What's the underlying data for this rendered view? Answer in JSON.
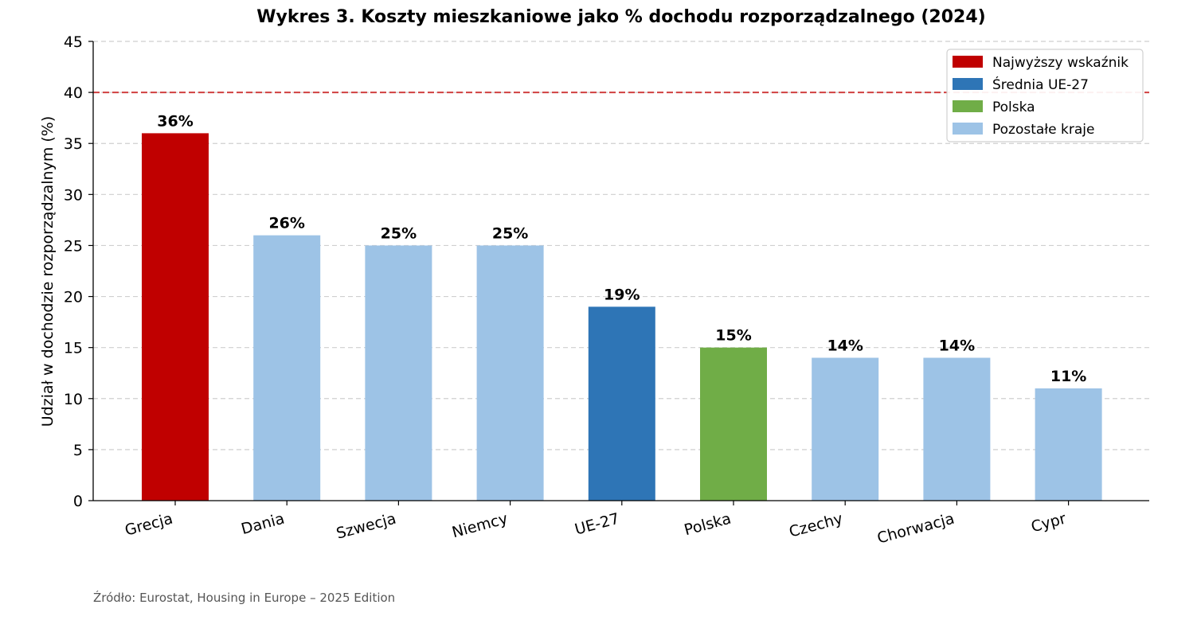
{
  "chart_data": {
    "type": "bar",
    "title": "Wykres 3. Koszty mieszkaniowe jako % dochodu rozporządzalnego (2024)",
    "xlabel": "",
    "ylabel": "Udział w dochodzie rozporządzalnym (%)",
    "ylim": [
      0,
      45
    ],
    "yticks": [
      0,
      5,
      10,
      15,
      20,
      25,
      30,
      35,
      40,
      45
    ],
    "grid": "horizontal dashed",
    "categories": [
      "Grecja",
      "Dania",
      "Szwecja",
      "Niemcy",
      "UE-27",
      "Polska",
      "Czechy",
      "Chorwacja",
      "Cypr"
    ],
    "values": [
      36,
      26,
      25,
      25,
      19,
      15,
      14,
      14,
      11
    ],
    "value_labels": [
      "36%",
      "26%",
      "25%",
      "25%",
      "19%",
      "15%",
      "14%",
      "14%",
      "11%"
    ],
    "bar_groups": [
      "highest",
      "other",
      "other",
      "other",
      "eu",
      "poland",
      "other",
      "other",
      "other"
    ],
    "colors": {
      "highest": "#c00000",
      "eu": "#2e75b6",
      "poland": "#70ad47",
      "other": "#9dc3e6",
      "reference_line": "#d04040"
    },
    "reference_line": {
      "value": 40,
      "style": "dashed"
    },
    "legend": {
      "placement": "top-right",
      "entries": [
        {
          "label": "Najwyższy wskaźnik",
          "group": "highest"
        },
        {
          "label": "Średnia UE-27",
          "group": "eu"
        },
        {
          "label": "Polska",
          "group": "poland"
        },
        {
          "label": "Pozostałe kraje",
          "group": "other"
        }
      ]
    },
    "source_note": "Źródło: Eurostat, Housing in Europe – 2025 Edition"
  }
}
